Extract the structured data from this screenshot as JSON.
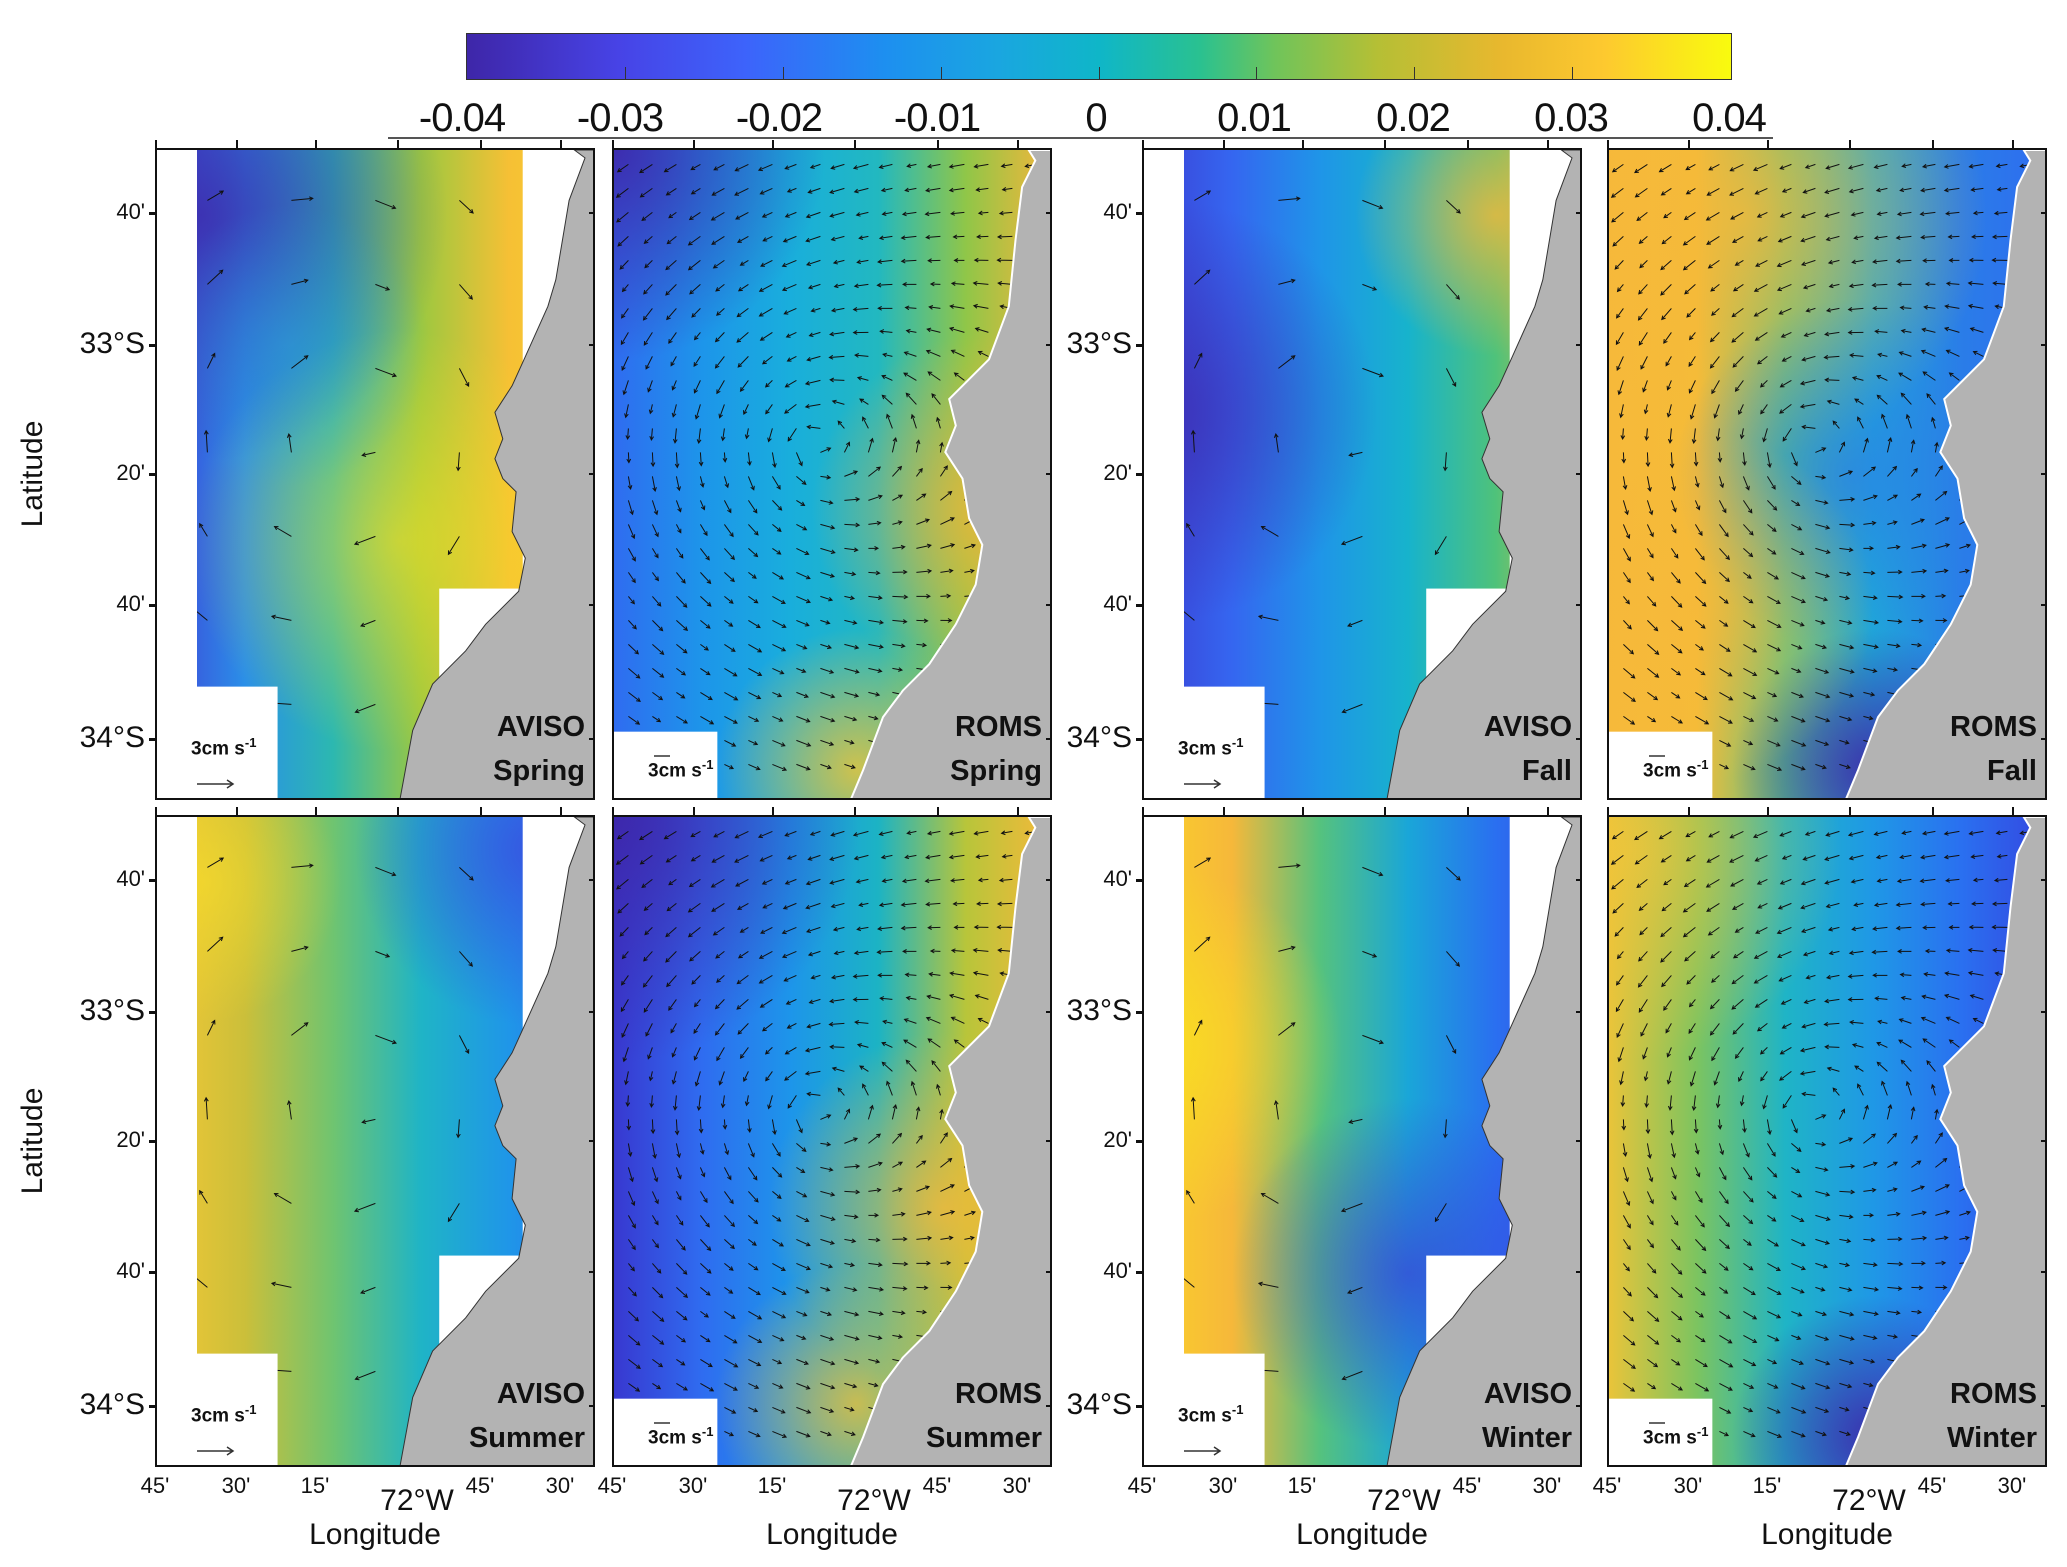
{
  "colorbar": {
    "colormap": "parula",
    "range": [
      -0.04,
      0.04
    ],
    "ticks": [
      "-0.04",
      "-0.03",
      "-0.02",
      "-0.01",
      "0",
      "0.01",
      "0.02",
      "0.03",
      "0.04"
    ]
  },
  "axes": {
    "ylabel": "Latitude",
    "xlabel": "Longitude",
    "lat_ticks": [
      "40'",
      "33°S",
      "20'",
      "40'",
      "34°S"
    ],
    "lon_ticks": [
      "45'",
      "30'",
      "15'",
      "72°W",
      "45'",
      "30'"
    ]
  },
  "panels": [
    {
      "source": "AVISO",
      "season": "Spring",
      "scale_label": "3cm s",
      "scale_exp": "-1"
    },
    {
      "source": "ROMS",
      "season": "Spring",
      "scale_label": "3cm s",
      "scale_exp": "-1"
    },
    {
      "source": "AVISO",
      "season": "Fall",
      "scale_label": "3cm s",
      "scale_exp": "-1"
    },
    {
      "source": "ROMS",
      "season": "Fall",
      "scale_label": "3cm s",
      "scale_exp": "-1"
    },
    {
      "source": "AVISO",
      "season": "Summer",
      "scale_label": "3cm s",
      "scale_exp": "-1"
    },
    {
      "source": "ROMS",
      "season": "Summer",
      "scale_label": "3cm s",
      "scale_exp": "-1"
    },
    {
      "source": "AVISO",
      "season": "Winter",
      "scale_label": "3cm s",
      "scale_exp": "-1"
    },
    {
      "source": "ROMS",
      "season": "Winter",
      "scale_label": "3cm s",
      "scale_exp": "-1"
    }
  ]
}
